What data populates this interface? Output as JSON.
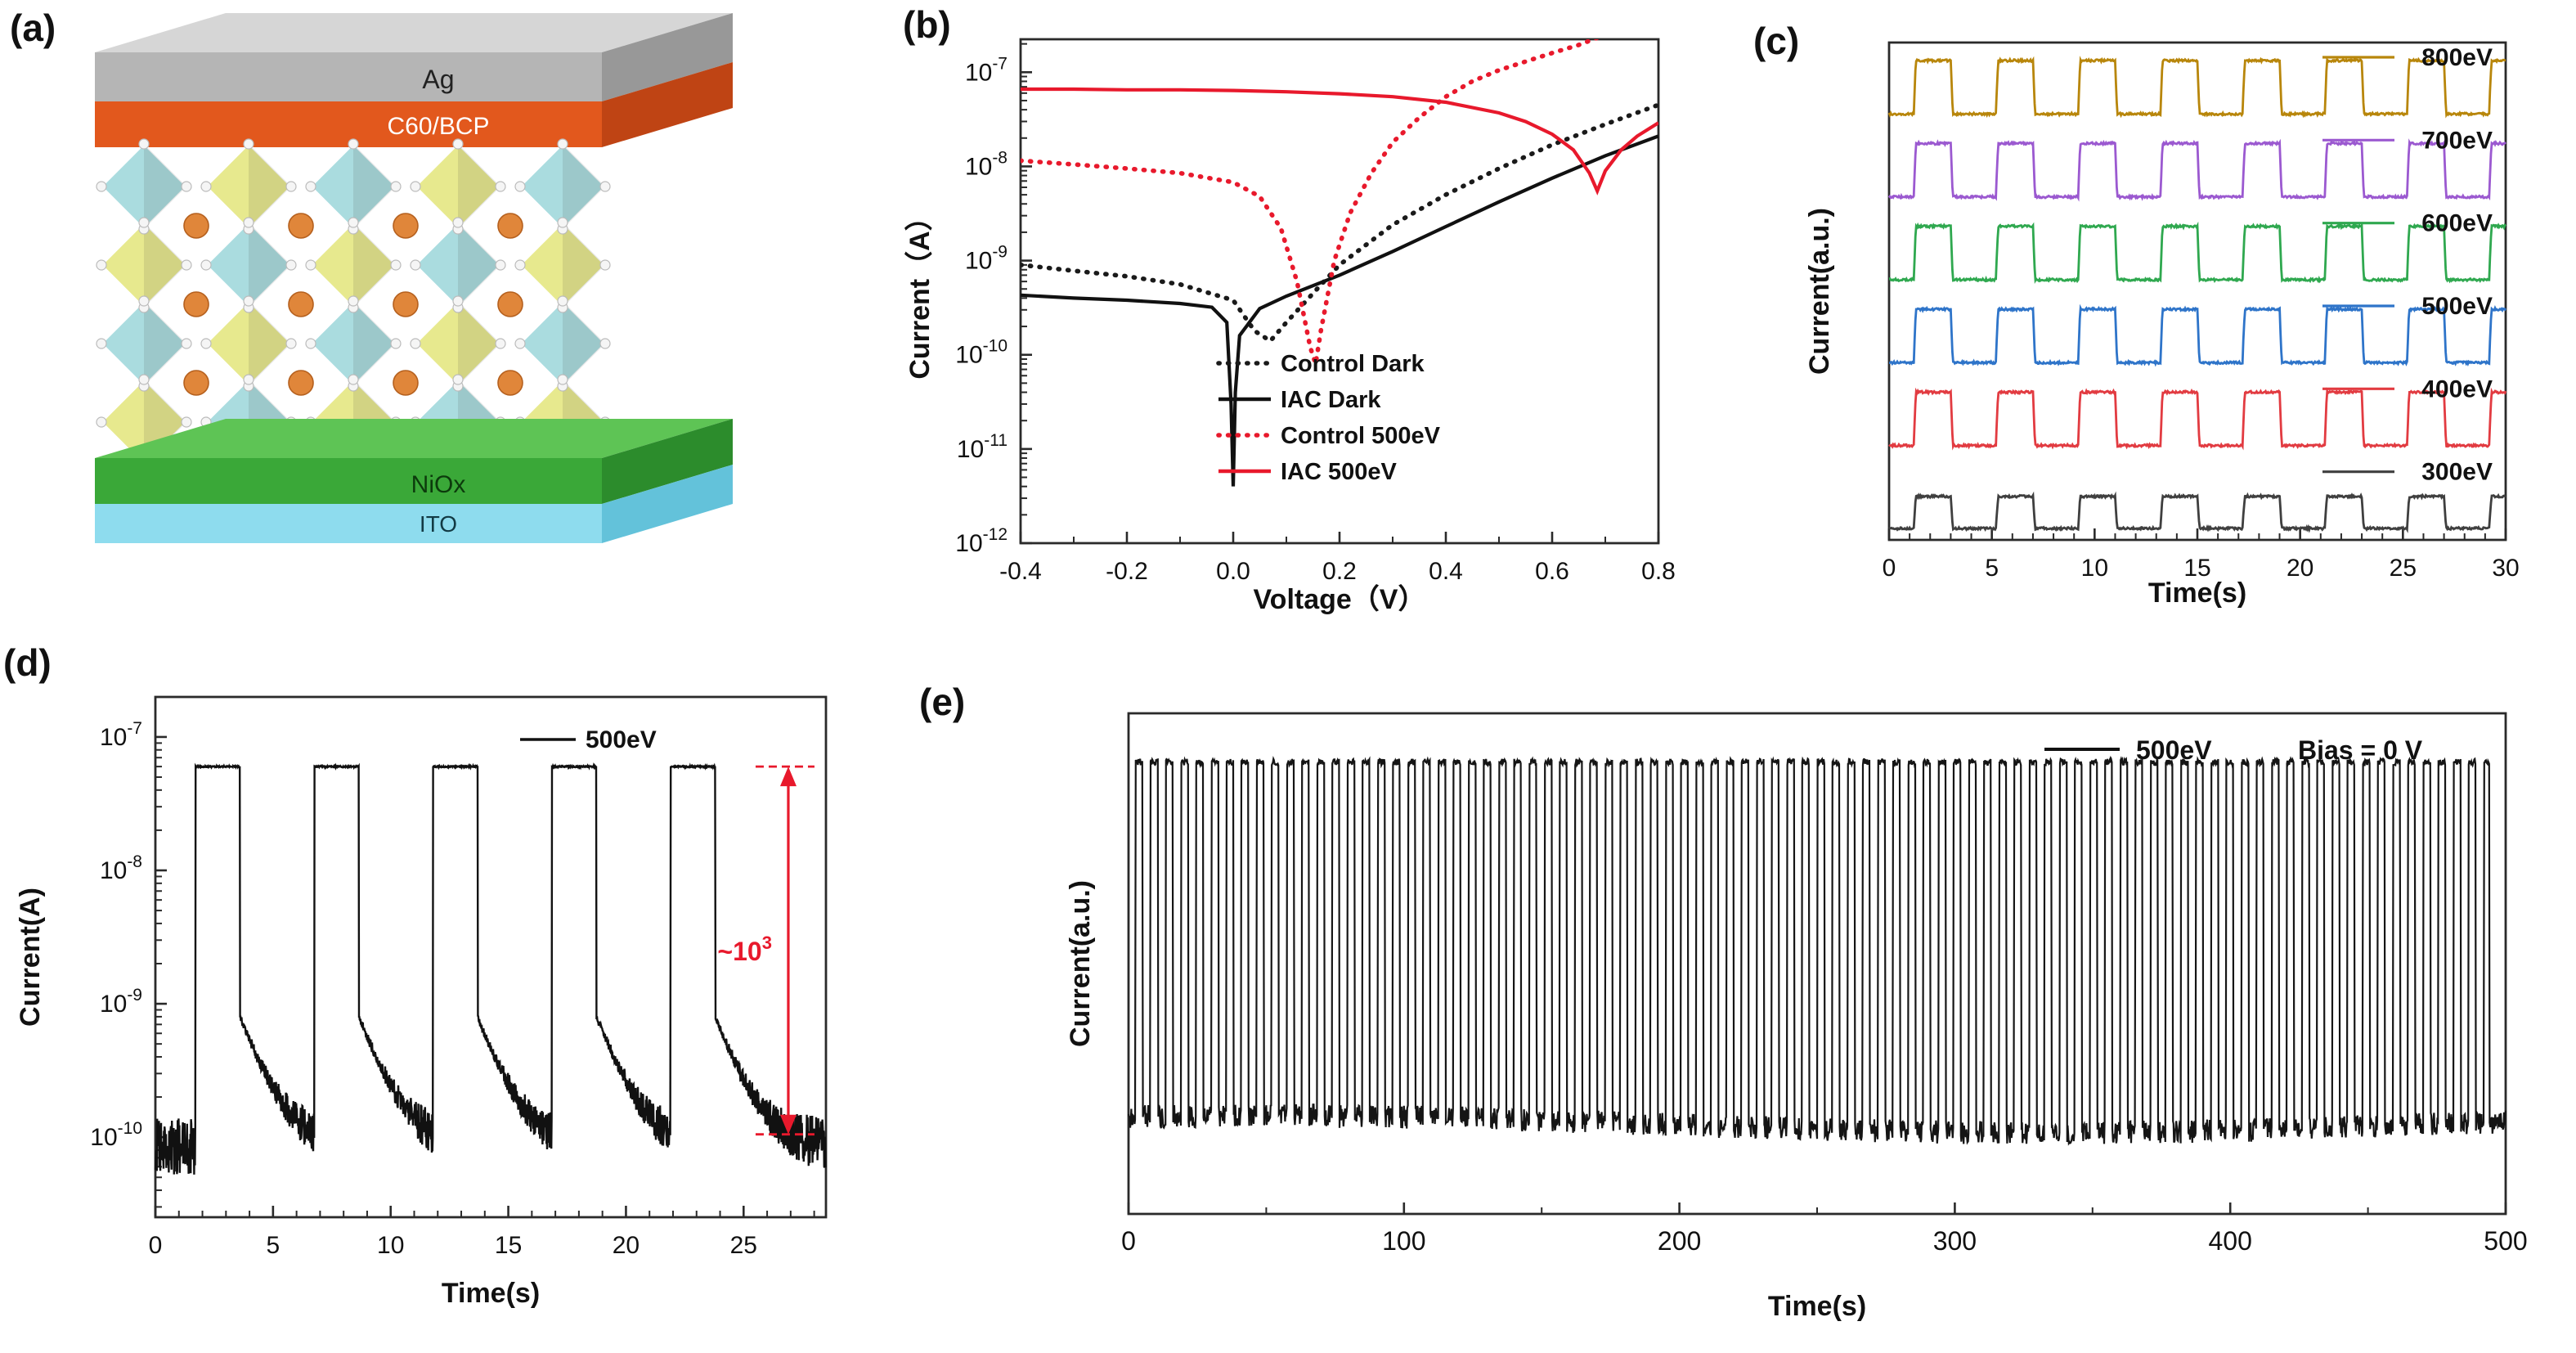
{
  "panels": {
    "a": "(a)",
    "b": "(b)",
    "c": "(c)",
    "d": "(d)",
    "e": "(e)"
  },
  "panel_a": {
    "layers": {
      "ag": {
        "label": "Ag"
      },
      "c60": {
        "label": "C60/BCP"
      },
      "niox": {
        "label": "NiOx"
      },
      "ito": {
        "label": "ITO"
      }
    },
    "colors": {
      "ag_top": "#d6d6d6",
      "ag_front": "#b5b5b5",
      "ag_side": "#989898",
      "c60_front": "#e2581d",
      "c60_side": "#bf4414",
      "niox_top": "#5ec455",
      "niox_front": "#3aa838",
      "niox_side": "#2c8c2c",
      "ito_front": "#8edcee",
      "ito_side": "#63c2da",
      "octa_cyan": "#aadcdf",
      "octa_yellow": "#e7e98e",
      "sphere": "#e0863a",
      "vertex": "#f5f5f5"
    }
  },
  "chart_data": [
    {
      "id": "b",
      "type": "line",
      "xlabel": "Voltage（V）",
      "ylabel": "Current（A）",
      "xlim": [
        -0.4,
        0.8
      ],
      "xtick_values": [
        -0.4,
        -0.2,
        0,
        0.2,
        0.4,
        0.6,
        0.8
      ],
      "xtick_labels": [
        "-0.4",
        "-0.2",
        "0.0",
        "0.2",
        "0.4",
        "0.6",
        "0.8"
      ],
      "yscale": "log",
      "ylim_exp": [
        -12,
        -6.65
      ],
      "ytick_exps": [
        -12,
        -11,
        -10,
        -9,
        -8,
        -7
      ],
      "series": [
        {
          "name": "Control Dark",
          "color": "#1a1a1a",
          "dash": "dotted",
          "points": [
            [
              -0.4,
              9e-10
            ],
            [
              -0.3,
              7.8e-10
            ],
            [
              -0.2,
              6.8e-10
            ],
            [
              -0.1,
              5.6e-10
            ],
            [
              0,
              3.8e-10
            ],
            [
              0.04,
              1.8e-10
            ],
            [
              0.07,
              1.4e-10
            ],
            [
              0.1,
              2.2e-10
            ],
            [
              0.15,
              4.5e-10
            ],
            [
              0.2,
              9e-10
            ],
            [
              0.3,
              2.4e-09
            ],
            [
              0.4,
              5e-09
            ],
            [
              0.5,
              9.5e-09
            ],
            [
              0.6,
              1.7e-08
            ],
            [
              0.7,
              2.8e-08
            ],
            [
              0.8,
              4.5e-08
            ]
          ]
        },
        {
          "name": "IAC Dark",
          "color": "#111111",
          "dash": "solid",
          "points": [
            [
              -0.4,
              4.3e-10
            ],
            [
              -0.3,
              4e-10
            ],
            [
              -0.2,
              3.8e-10
            ],
            [
              -0.1,
              3.5e-10
            ],
            [
              -0.04,
              3.2e-10
            ],
            [
              -0.012,
              2.2e-10
            ],
            [
              -0.004,
              3e-11
            ],
            [
              0,
              4e-12
            ],
            [
              0.004,
              4e-11
            ],
            [
              0.012,
              1.6e-10
            ],
            [
              0.05,
              3.1e-10
            ],
            [
              0.1,
              4.2e-10
            ],
            [
              0.2,
              7e-10
            ],
            [
              0.3,
              1.25e-09
            ],
            [
              0.4,
              2.3e-09
            ],
            [
              0.5,
              4.2e-09
            ],
            [
              0.6,
              7.5e-09
            ],
            [
              0.7,
              1.3e-08
            ],
            [
              0.8,
              2.1e-08
            ]
          ]
        },
        {
          "name": "Control 500eV",
          "color": "#e8192c",
          "dash": "dotted",
          "points": [
            [
              -0.4,
              1.15e-08
            ],
            [
              -0.3,
              1.05e-08
            ],
            [
              -0.2,
              9.5e-09
            ],
            [
              -0.1,
              8.5e-09
            ],
            [
              0,
              6.8e-09
            ],
            [
              0.05,
              4.8e-09
            ],
            [
              0.09,
              2.2e-09
            ],
            [
              0.12,
              6e-10
            ],
            [
              0.145,
              1.2e-10
            ],
            [
              0.155,
              8e-11
            ],
            [
              0.165,
              1.8e-10
            ],
            [
              0.19,
              1e-09
            ],
            [
              0.22,
              3.2e-09
            ],
            [
              0.26,
              8.5e-09
            ],
            [
              0.3,
              1.8e-08
            ],
            [
              0.35,
              3.3e-08
            ],
            [
              0.4,
              5.5e-08
            ],
            [
              0.45,
              8e-08
            ],
            [
              0.5,
              1.05e-07
            ],
            [
              0.55,
              1.3e-07
            ],
            [
              0.6,
              1.6e-07
            ],
            [
              0.65,
              1.95e-07
            ],
            [
              0.7,
              2.5e-07
            ],
            [
              0.74,
              3.2e-07
            ],
            [
              0.78,
              4.3e-07
            ]
          ]
        },
        {
          "name": "IAC 500eV",
          "color": "#e8192c",
          "dash": "solid",
          "points": [
            [
              -0.4,
              6.6e-08
            ],
            [
              -0.3,
              6.6e-08
            ],
            [
              -0.2,
              6.5e-08
            ],
            [
              -0.1,
              6.5e-08
            ],
            [
              0,
              6.4e-08
            ],
            [
              0.1,
              6.2e-08
            ],
            [
              0.2,
              5.9e-08
            ],
            [
              0.3,
              5.5e-08
            ],
            [
              0.4,
              4.8e-08
            ],
            [
              0.5,
              3.7e-08
            ],
            [
              0.55,
              3e-08
            ],
            [
              0.6,
              2.2e-08
            ],
            [
              0.64,
              1.5e-08
            ],
            [
              0.67,
              8.5e-09
            ],
            [
              0.685,
              5.5e-09
            ],
            [
              0.7,
              9e-09
            ],
            [
              0.73,
              1.5e-08
            ],
            [
              0.76,
              2.1e-08
            ],
            [
              0.8,
              2.9e-08
            ]
          ]
        }
      ],
      "legend": [
        "Control Dark",
        "IAC Dark",
        "Control 500eV",
        "IAC 500eV"
      ]
    },
    {
      "id": "c",
      "type": "line",
      "xlabel": "Time(s)",
      "ylabel": "Current(a.u.)",
      "xlim": [
        0,
        30
      ],
      "xtick_values": [
        0,
        5,
        10,
        15,
        20,
        25,
        30
      ],
      "xtick_labels": [
        "0",
        "5",
        "10",
        "15",
        "20",
        "25",
        "30"
      ],
      "series": [
        {
          "name": "800eV",
          "color": "#b8860b",
          "rel_amplitude": 1
        },
        {
          "name": "700eV",
          "color": "#9b59d0",
          "rel_amplitude": 1
        },
        {
          "name": "600eV",
          "color": "#2fa84f",
          "rel_amplitude": 1
        },
        {
          "name": "500eV",
          "color": "#2e74c9",
          "rel_amplitude": 1
        },
        {
          "name": "400eV",
          "color": "#e23b41",
          "rel_amplitude": 1
        },
        {
          "name": "300eV",
          "color": "#3f3f3f",
          "rel_amplitude": 0.6
        }
      ],
      "pulse": {
        "t_first": 1.2,
        "period": 4.0,
        "on": 1.8,
        "t_end": 30
      }
    },
    {
      "id": "d",
      "type": "line",
      "xlabel": "Time(s)",
      "ylabel": "Current(A)",
      "xlim": [
        0,
        28.5
      ],
      "xtick_values": [
        0,
        5,
        10,
        15,
        20,
        25
      ],
      "xtick_labels": [
        "0",
        "5",
        "10",
        "15",
        "20",
        "25"
      ],
      "yscale": "log",
      "ylim_exp": [
        -10.6,
        -6.7
      ],
      "ytick_exps": [
        -10,
        -9,
        -8,
        -7
      ],
      "series": [
        {
          "name": "500eV",
          "color": "#111111"
        }
      ],
      "pulse": {
        "t_first": 1.7,
        "period": 5.05,
        "on": 1.9,
        "count": 5,
        "high": 6e-08,
        "low": 8.5e-11,
        "tail_amp": 7e-10,
        "tail_tau": 0.9
      },
      "annotation": {
        "base": "~10",
        "exp": "3",
        "color": "#e8192c",
        "x": 26.9,
        "y_top": 6e-08,
        "y_bot": 1.05e-10
      }
    },
    {
      "id": "e",
      "type": "line",
      "xlabel": "Time(s)",
      "ylabel": "Current(a.u.)",
      "xlim": [
        0,
        500
      ],
      "xtick_values": [
        0,
        100,
        200,
        300,
        400,
        500
      ],
      "xtick_labels": [
        "0",
        "100",
        "200",
        "300",
        "400",
        "500"
      ],
      "series": [
        {
          "name": "500eV",
          "color": "#151515"
        }
      ],
      "legend_extra": "Bias = 0 V",
      "pulse": {
        "t_first": 2.5,
        "period": 5.5,
        "on": 2.6,
        "t_end": 494
      }
    }
  ]
}
